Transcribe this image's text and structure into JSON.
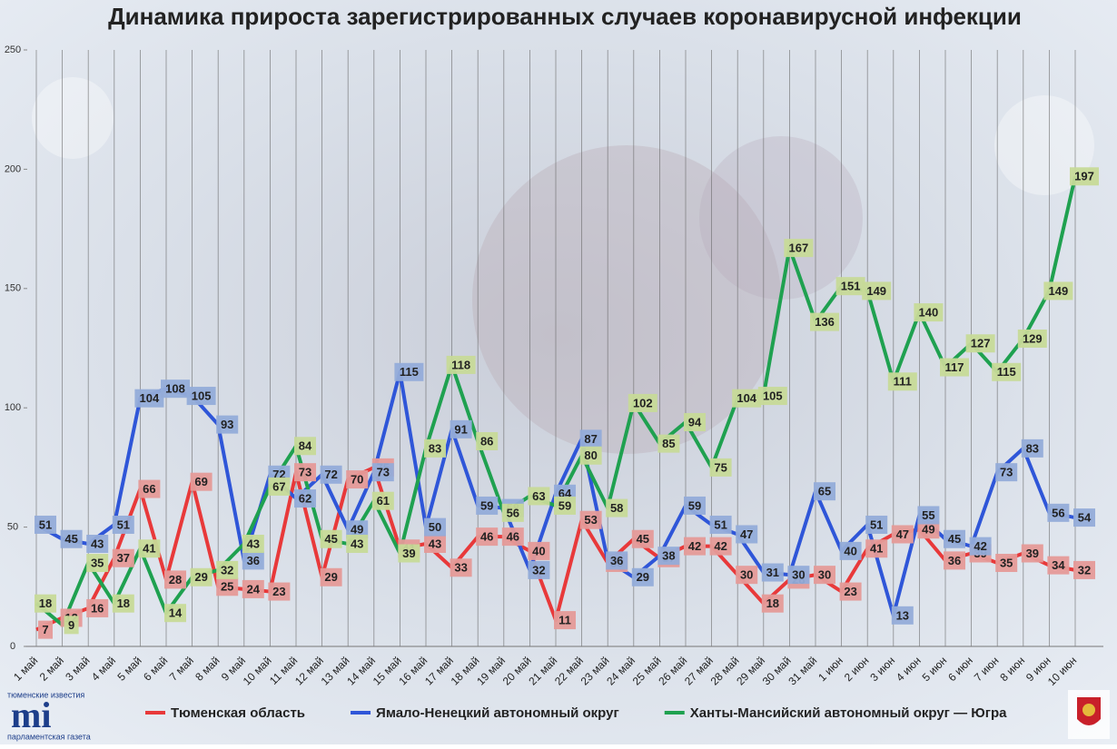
{
  "chart_data": {
    "type": "line",
    "title": "Динамика прироста зарегистрированных случаев коронавирусной инфекции",
    "categories": [
      "1 май",
      "2 май",
      "3 май",
      "4 май",
      "5 май",
      "6 май",
      "7 май",
      "8 май",
      "9 май",
      "10 май",
      "11 май",
      "12 май",
      "13 май",
      "14 май",
      "15 май",
      "16 май",
      "17 май",
      "18 май",
      "19 май",
      "20 май",
      "21 май",
      "22 май",
      "23 май",
      "24 май",
      "25 май",
      "26 май",
      "27 май",
      "28 май",
      "29 май",
      "30 май",
      "31 май",
      "1 июн",
      "2 июн",
      "3 июн",
      "4 июн",
      "5 июн",
      "6 июн",
      "7 июн",
      "8 июн",
      "9 июн",
      "10 июн"
    ],
    "series": [
      {
        "name": "Тюменская область",
        "color": "#e8393a",
        "label_color": "#e59a98",
        "values": [
          7,
          12,
          16,
          37,
          66,
          28,
          69,
          25,
          24,
          23,
          73,
          29,
          70,
          75,
          41,
          43,
          33,
          46,
          46,
          40,
          11,
          53,
          35,
          45,
          37,
          42,
          42,
          30,
          18,
          28,
          30,
          23,
          41,
          47,
          49,
          36,
          39,
          35,
          39,
          34,
          32
        ]
      },
      {
        "name": "Ямало-Ненецкий автономный округ",
        "color": "#2f56d8",
        "label_color": "#93acd9",
        "values": [
          51,
          45,
          43,
          51,
          104,
          108,
          105,
          93,
          36,
          72,
          62,
          72,
          49,
          73,
          115,
          50,
          91,
          59,
          58,
          32,
          64,
          87,
          36,
          29,
          38,
          59,
          51,
          47,
          31,
          30,
          65,
          40,
          51,
          13,
          55,
          45,
          42,
          73,
          83,
          56,
          54
        ]
      },
      {
        "name": "Ханты-Мансийский автономный округ — Югра",
        "color": "#1fa150",
        "label_color": "#c7da98",
        "values": [
          18,
          9,
          35,
          18,
          41,
          14,
          29,
          32,
          43,
          67,
          84,
          45,
          43,
          61,
          39,
          83,
          118,
          86,
          56,
          63,
          59,
          80,
          58,
          102,
          85,
          94,
          75,
          104,
          105,
          167,
          136,
          151,
          149,
          111,
          140,
          117,
          127,
          115,
          129,
          149,
          197
        ]
      }
    ],
    "ylim": [
      0,
      250
    ],
    "yticks": [
      0,
      50,
      100,
      150,
      200,
      250
    ],
    "grid": "vertical",
    "legend": "bottom"
  },
  "branding": {
    "logo_top": "тюменские известия",
    "logo_mark": "mi",
    "logo_bottom": "парламентская газета"
  }
}
